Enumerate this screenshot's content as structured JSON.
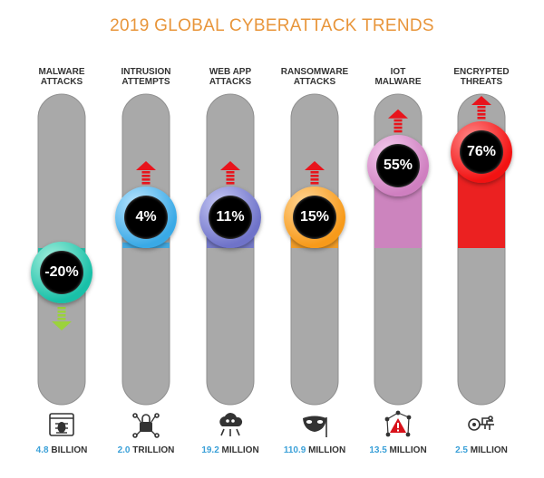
{
  "chart_data": {
    "type": "bar",
    "title": "2019 GLOBAL CYBERATTACK TRENDS",
    "baseline_percent": 0,
    "categories": [
      {
        "label_lines": [
          "MALWARE",
          "ATTACKS"
        ],
        "change_label": "-20%",
        "change": -20,
        "direction": "down",
        "color": "#19c0a8",
        "color_light": "#a8f0de",
        "total_value": "4.8",
        "total_unit": "BILLION",
        "icon": "malware-bug-icon"
      },
      {
        "label_lines": [
          "INTRUSION",
          "ATTEMPTS"
        ],
        "change_label": "4%",
        "change": 4,
        "direction": "up",
        "color": "#39a9e6",
        "color_light": "#bde6ff",
        "total_value": "2.0",
        "total_unit": "TRILLION",
        "icon": "network-lock-icon"
      },
      {
        "label_lines": [
          "WEB APP",
          "ATTACKS"
        ],
        "change_label": "11%",
        "change": 11,
        "direction": "up",
        "color": "#6f73c9",
        "color_light": "#c9cbf6",
        "total_value": "19.2",
        "total_unit": "MILLION",
        "icon": "cloud-skull-icon"
      },
      {
        "label_lines": [
          "RANSOMWARE",
          "ATTACKS"
        ],
        "change_label": "15%",
        "change": 15,
        "direction": "up",
        "color": "#f79a1a",
        "color_light": "#ffd79a",
        "total_value": "110.9",
        "total_unit": "MILLION",
        "icon": "mask-icon"
      },
      {
        "label_lines": [
          "IOT",
          "MALWARE"
        ],
        "change_label": "55%",
        "change": 55,
        "direction": "up",
        "color": "#cf7fc0",
        "color_light": "#f5cdee",
        "total_value": "13.5",
        "total_unit": "MILLION",
        "icon": "iot-network-icon"
      },
      {
        "label_lines": [
          "ENCRYPTED",
          "THREATS"
        ],
        "change_label": "76%",
        "change": 76,
        "direction": "up",
        "color": "#f21212",
        "color_light": "#ff8c8c",
        "total_value": "2.5",
        "total_unit": "MILLION",
        "icon": "key-circuit-icon"
      }
    ],
    "colors": {
      "track": "#a9a9a9",
      "track_edge": "#8f8f8f",
      "up_arrow": "#e8141c",
      "down_arrow": "#9bd23c",
      "total_number": "#3aa0d8",
      "title": "#e8953a"
    }
  }
}
